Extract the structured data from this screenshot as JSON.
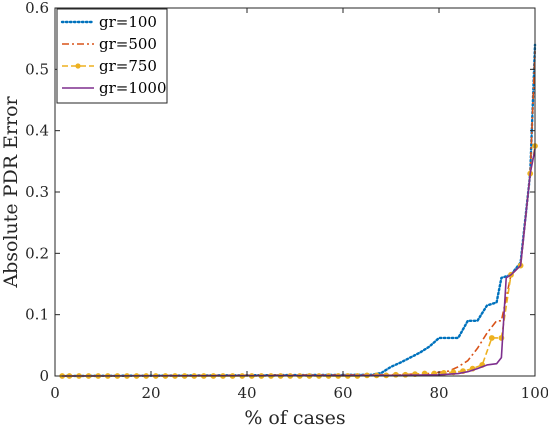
{
  "chart_data": {
    "type": "line",
    "title": "",
    "xlabel": "% of cases",
    "ylabel": "Absolute PDR Error",
    "xlim": [
      0,
      100
    ],
    "ylim": [
      0,
      0.6
    ],
    "xticks": [
      0,
      20,
      40,
      60,
      80,
      100
    ],
    "yticks": [
      0,
      0.1,
      0.2,
      0.3,
      0.4,
      0.5,
      0.6
    ],
    "ytick_labels": [
      "0",
      "0.1",
      "0.2",
      "0.3",
      "0.4",
      "0.5",
      "0.6"
    ],
    "grid": false,
    "legend_position": "top-left",
    "series": [
      {
        "name": "gr=100",
        "color": "#0072bd",
        "style": "dotted",
        "x": [
          1.5,
          66,
          68,
          70,
          72,
          74,
          76,
          78,
          80,
          82,
          84,
          86,
          88,
          90,
          92,
          93,
          95,
          97,
          99,
          100
        ],
        "y": [
          0,
          0.002,
          0.005,
          0.015,
          0.022,
          0.03,
          0.038,
          0.048,
          0.062,
          0.062,
          0.062,
          0.09,
          0.09,
          0.115,
          0.12,
          0.16,
          0.165,
          0.185,
          0.33,
          0.54
        ]
      },
      {
        "name": "gr=500",
        "color": "#d95319",
        "style": "dashdot",
        "x": [
          1.5,
          70,
          78,
          82,
          84,
          86,
          88,
          90,
          92,
          93,
          95,
          97,
          99,
          100
        ],
        "y": [
          0,
          0.002,
          0.004,
          0.008,
          0.015,
          0.025,
          0.045,
          0.07,
          0.09,
          0.09,
          0.165,
          0.18,
          0.33,
          0.53
        ]
      },
      {
        "name": "gr=750",
        "color": "#edb120",
        "style": "dashed-marker",
        "x": [
          1.5,
          3,
          5,
          7,
          9,
          11,
          13,
          15,
          17,
          19,
          21,
          23,
          25,
          27,
          29,
          31,
          33,
          35,
          37,
          39,
          41,
          43,
          45,
          47,
          49,
          51,
          53,
          55,
          57,
          59,
          61,
          63,
          65,
          67,
          69,
          71,
          73,
          75,
          77,
          79,
          81,
          83,
          85,
          87,
          89,
          91,
          93,
          95,
          97,
          99,
          100
        ],
        "y": [
          0,
          0,
          0,
          0,
          0,
          0,
          0,
          0,
          0,
          0,
          0,
          0,
          0,
          0,
          0,
          0,
          0,
          0,
          0,
          0,
          0,
          0,
          0,
          0,
          0,
          0,
          0,
          0,
          0,
          0,
          0,
          0,
          0.001,
          0.001,
          0.001,
          0.002,
          0.002,
          0.003,
          0.004,
          0.004,
          0.005,
          0.006,
          0.008,
          0.012,
          0.018,
          0.062,
          0.062,
          0.165,
          0.18,
          0.33,
          0.375
        ]
      },
      {
        "name": "gr=1000",
        "color": "#7e2f8e",
        "style": "solid",
        "x": [
          1.5,
          70,
          80,
          84,
          86,
          88,
          90,
          92,
          93,
          94,
          95,
          97,
          99,
          100
        ],
        "y": [
          0,
          0.001,
          0.002,
          0.004,
          0.007,
          0.012,
          0.018,
          0.02,
          0.03,
          0.16,
          0.165,
          0.18,
          0.33,
          0.37
        ]
      }
    ]
  }
}
